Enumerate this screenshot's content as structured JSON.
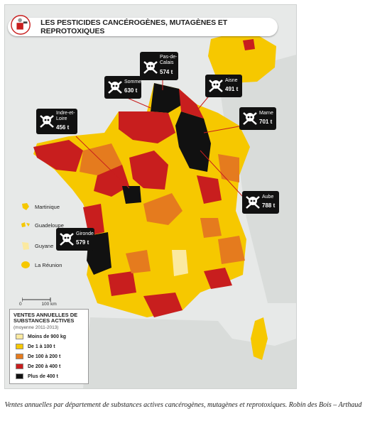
{
  "map": {
    "title": "LES PESTICIDES CANCÉROGÈNES, MUTAGÈNES ET REPROTOXIQUES",
    "scale": {
      "zero": "0",
      "distance": "100 km"
    },
    "legend": {
      "title_line1": "VENTES ANNUELLES DE",
      "title_line2": "SUBSTANCES ACTIVES",
      "subtitle": "(moyenne 2011-2013)",
      "items": [
        {
          "label": "Moins de 900 kg",
          "color": "#fbe9a0"
        },
        {
          "label": "De 1 à 100 t",
          "color": "#f6c800"
        },
        {
          "label": "De 100 à 200 t",
          "color": "#e57b1e"
        },
        {
          "label": "De 200 à 400 t",
          "color": "#c81e1e"
        },
        {
          "label": "Plus de 400 t",
          "color": "#111111"
        }
      ]
    },
    "overseas": [
      {
        "label": "Martinique",
        "color": "#f6c800"
      },
      {
        "label": "Guadeloupe",
        "color": "#f6c800"
      },
      {
        "label": "Guyane",
        "color": "#fbe9a0"
      },
      {
        "label": "La Réunion",
        "color": "#f6c800"
      }
    ],
    "callouts": [
      {
        "name": "Pas-de-Calais",
        "name_l1": "Pas-de-",
        "name_l2": "Calais",
        "value": "574 t"
      },
      {
        "name": "Somme",
        "name_l1": "Somme",
        "name_l2": "",
        "value": "630 t"
      },
      {
        "name": "Aisne",
        "name_l1": "Aisne",
        "name_l2": "",
        "value": "491 t"
      },
      {
        "name": "Indre-et-Loire",
        "name_l1": "Indre-et-",
        "name_l2": "Loire",
        "value": "456 t"
      },
      {
        "name": "Marne",
        "name_l1": "Marne",
        "name_l2": "",
        "value": "701 t"
      },
      {
        "name": "Aube",
        "name_l1": "Aube",
        "name_l2": "",
        "value": "788 t"
      },
      {
        "name": "Gironde",
        "name_l1": "Gironde",
        "name_l2": "",
        "value": "579 t"
      }
    ],
    "colors": {
      "sea": "#e7e9e8",
      "neighbor": "#d9dcda",
      "very_low": "#fbe9a0",
      "low": "#f6c800",
      "mid": "#e57b1e",
      "high": "#c81e1e",
      "very_high": "#111111"
    }
  },
  "caption": "Ventes annuelles par département de substances actives cancérogènes, mutagènes et reprotoxiques. Robin des Bois – Arthaud"
}
